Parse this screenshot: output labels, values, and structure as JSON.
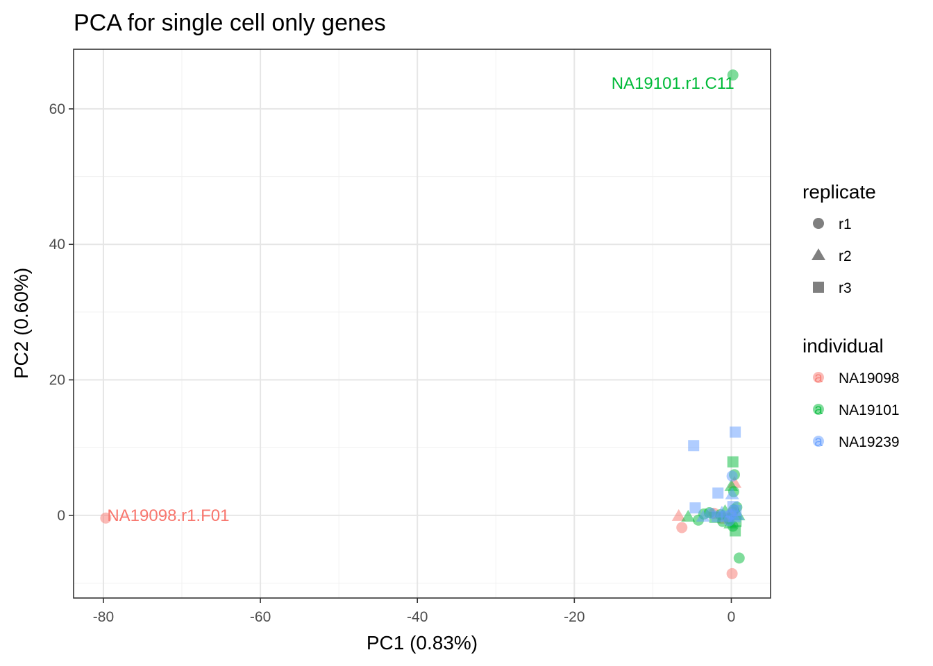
{
  "chart_data": {
    "type": "scatter",
    "title": "PCA for single cell only genes",
    "xlabel": "PC1 (0.83%)",
    "ylabel": "PC2 (0.60%)",
    "xlim": [
      -83.8,
      5.0
    ],
    "ylim": [
      -12.2,
      68.8
    ],
    "xticks": [
      -80,
      -60,
      -40,
      -20,
      0
    ],
    "yticks": [
      0,
      20,
      40,
      60
    ],
    "grid": true,
    "legend_placement": "right",
    "legends": [
      {
        "title": "replicate",
        "entries": [
          {
            "label": "r1",
            "shape": "circle"
          },
          {
            "label": "r2",
            "shape": "triangle"
          },
          {
            "label": "r3",
            "shape": "square"
          }
        ]
      },
      {
        "title": "individual",
        "entries": [
          {
            "label": "NA19098",
            "color": "#F8766D"
          },
          {
            "label": "NA19101",
            "color": "#00BA38"
          },
          {
            "label": "NA19239",
            "color": "#619CFF"
          }
        ]
      }
    ],
    "key_glyph": "a",
    "annotations": [
      {
        "text": "NA19101.r1.C11",
        "x": 0.2,
        "y": 65.0,
        "series": "NA19101",
        "anchor": "end"
      },
      {
        "text": "NA19098.r1.F01",
        "x": -79.7,
        "y": -0.4,
        "series": "NA19098",
        "anchor": "start"
      }
    ],
    "series": [
      {
        "name": "NA19098",
        "color": "#F8766D",
        "points": [
          {
            "x": -79.7,
            "y": -0.4,
            "shape": "circle"
          },
          {
            "x": -6.3,
            "y": -1.8,
            "shape": "circle"
          },
          {
            "x": 0.1,
            "y": -8.6,
            "shape": "circle"
          },
          {
            "x": -6.7,
            "y": -0.1,
            "shape": "triangle"
          },
          {
            "x": 0.4,
            "y": 4.8,
            "shape": "triangle"
          },
          {
            "x": -2.2,
            "y": 0.3,
            "shape": "circle"
          },
          {
            "x": -1.0,
            "y": -0.4,
            "shape": "square"
          },
          {
            "x": 0.2,
            "y": 0.5,
            "shape": "circle"
          }
        ]
      },
      {
        "name": "NA19101",
        "color": "#00BA38",
        "points": [
          {
            "x": 0.2,
            "y": 65.0,
            "shape": "circle"
          },
          {
            "x": 1.0,
            "y": -6.3,
            "shape": "circle"
          },
          {
            "x": 0.2,
            "y": 7.9,
            "shape": "square"
          },
          {
            "x": 0.4,
            "y": 6.0,
            "shape": "circle"
          },
          {
            "x": 0.0,
            "y": 4.3,
            "shape": "triangle"
          },
          {
            "x": 0.3,
            "y": 3.5,
            "shape": "circle"
          },
          {
            "x": -5.5,
            "y": -0.2,
            "shape": "triangle"
          },
          {
            "x": -4.2,
            "y": -0.7,
            "shape": "circle"
          },
          {
            "x": -3.5,
            "y": 0.2,
            "shape": "circle"
          },
          {
            "x": -2.8,
            "y": 0.4,
            "shape": "circle"
          },
          {
            "x": -2.1,
            "y": -0.3,
            "shape": "square"
          },
          {
            "x": -1.4,
            "y": 0.1,
            "shape": "circle"
          },
          {
            "x": -0.8,
            "y": 0.6,
            "shape": "triangle"
          },
          {
            "x": -0.3,
            "y": -0.5,
            "shape": "circle"
          },
          {
            "x": 0.3,
            "y": 0.8,
            "shape": "circle"
          },
          {
            "x": 0.6,
            "y": -0.9,
            "shape": "square"
          },
          {
            "x": 0.2,
            "y": -1.6,
            "shape": "circle"
          },
          {
            "x": 0.5,
            "y": -2.3,
            "shape": "square"
          },
          {
            "x": -0.1,
            "y": -1.2,
            "shape": "triangle"
          },
          {
            "x": 0.7,
            "y": 1.2,
            "shape": "circle"
          },
          {
            "x": -1.1,
            "y": -0.9,
            "shape": "circle"
          },
          {
            "x": 0.9,
            "y": 0.0,
            "shape": "triangle"
          }
        ]
      },
      {
        "name": "NA19239",
        "color": "#619CFF",
        "points": [
          {
            "x": 0.5,
            "y": 12.3,
            "shape": "square"
          },
          {
            "x": -4.8,
            "y": 10.3,
            "shape": "square"
          },
          {
            "x": -1.7,
            "y": 3.3,
            "shape": "square"
          },
          {
            "x": 0.1,
            "y": 3.1,
            "shape": "triangle"
          },
          {
            "x": -4.6,
            "y": 1.1,
            "shape": "square"
          },
          {
            "x": -3.6,
            "y": -0.2,
            "shape": "triangle"
          },
          {
            "x": -2.6,
            "y": 0.3,
            "shape": "circle"
          },
          {
            "x": -1.8,
            "y": -0.2,
            "shape": "square"
          },
          {
            "x": -1.2,
            "y": 0.4,
            "shape": "triangle"
          },
          {
            "x": -0.6,
            "y": -0.1,
            "shape": "square"
          },
          {
            "x": 0.0,
            "y": 0.2,
            "shape": "circle"
          },
          {
            "x": 0.4,
            "y": -0.3,
            "shape": "triangle"
          },
          {
            "x": 0.8,
            "y": 0.0,
            "shape": "triangle"
          },
          {
            "x": 0.2,
            "y": 1.3,
            "shape": "square"
          },
          {
            "x": -0.3,
            "y": -0.8,
            "shape": "circle"
          },
          {
            "x": 0.6,
            "y": 0.7,
            "shape": "square"
          },
          {
            "x": 0.1,
            "y": 5.8,
            "shape": "circle"
          }
        ]
      }
    ]
  }
}
